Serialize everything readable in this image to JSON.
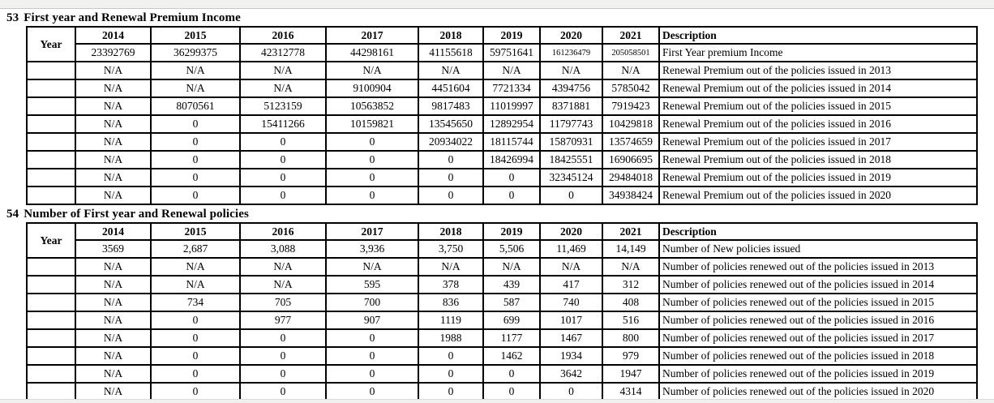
{
  "sections": [
    {
      "number": "53",
      "title": "First year and Renewal Premium Income",
      "table": {
        "year_header": "Year",
        "col_headers": [
          "2014",
          "2015",
          "2016",
          "2017",
          "2018",
          "2019",
          "2020",
          "2021"
        ],
        "description_header": "Description",
        "rows": [
          {
            "cells": [
              "23392769",
              "36299375",
              "42312778",
              "44298161",
              "41155618",
              "59751641",
              "161236479",
              "205058501"
            ],
            "small_cells": [
              6,
              7
            ],
            "description": "First Year premium Income"
          },
          {
            "cells": [
              "N/A",
              "N/A",
              "N/A",
              "N/A",
              "N/A",
              "N/A",
              "N/A",
              "N/A"
            ],
            "description": "Renewal Premium out of the policies issued in 2013"
          },
          {
            "cells": [
              "N/A",
              "N/A",
              "N/A",
              "9100904",
              "4451604",
              "7721334",
              "4394756",
              "5785042"
            ],
            "description": "Renewal Premium out of the policies issued in 2014"
          },
          {
            "cells": [
              "N/A",
              "8070561",
              "5123159",
              "10563852",
              "9817483",
              "11019997",
              "8371881",
              "7919423"
            ],
            "description": "Renewal Premium out of the policies issued in 2015"
          },
          {
            "cells": [
              "N/A",
              "0",
              "15411266",
              "10159821",
              "13545650",
              "12892954",
              "11797743",
              "10429818"
            ],
            "description": "Renewal Premium out of the policies issued in 2016"
          },
          {
            "cells": [
              "N/A",
              "0",
              "0",
              "0",
              "20934022",
              "18115744",
              "15870931",
              "13574659"
            ],
            "description": "Renewal Premium out of the policies issued in 2017"
          },
          {
            "cells": [
              "N/A",
              "0",
              "0",
              "0",
              "0",
              "18426994",
              "18425551",
              "16906695"
            ],
            "description": "Renewal Premium out of the policies issued in 2018"
          },
          {
            "cells": [
              "N/A",
              "0",
              "0",
              "0",
              "0",
              "0",
              "32345124",
              "29484018"
            ],
            "description": "Renewal Premium out of the policies issued in 2019"
          },
          {
            "cells": [
              "N/A",
              "0",
              "0",
              "0",
              "0",
              "0",
              "0",
              "34938424"
            ],
            "description": "Renewal Premium out of the policies issued in 2020"
          }
        ]
      }
    },
    {
      "number": "54",
      "title": "Number of First year and Renewal policies",
      "table": {
        "year_header": "Year",
        "col_headers": [
          "2014",
          "2015",
          "2016",
          "2017",
          "2018",
          "2019",
          "2020",
          "2021"
        ],
        "description_header": "Description",
        "rows": [
          {
            "cells": [
              "3569",
              "2,687",
              "3,088",
              "3,936",
              "3,750",
              "5,506",
              "11,469",
              "14,149"
            ],
            "description": "Number of New policies issued"
          },
          {
            "cells": [
              "N/A",
              "N/A",
              "N/A",
              "N/A",
              "N/A",
              "N/A",
              "N/A",
              "N/A"
            ],
            "description": "Number of policies renewed out of the policies issued in 2013"
          },
          {
            "cells": [
              "N/A",
              "N/A",
              "N/A",
              "595",
              "378",
              "439",
              "417",
              "312"
            ],
            "description": "Number of policies renewed out of the policies issued in 2014"
          },
          {
            "cells": [
              "N/A",
              "734",
              "705",
              "700",
              "836",
              "587",
              "740",
              "408"
            ],
            "description": "Number of policies renewed out of the policies issued in 2015"
          },
          {
            "cells": [
              "N/A",
              "0",
              "977",
              "907",
              "1119",
              "699",
              "1017",
              "516"
            ],
            "description": "Number of policies renewed out of the policies issued in 2016"
          },
          {
            "cells": [
              "N/A",
              "0",
              "0",
              "0",
              "1988",
              "1177",
              "1467",
              "800"
            ],
            "description": "Number of policies renewed out of the policies issued in 2017"
          },
          {
            "cells": [
              "N/A",
              "0",
              "0",
              "0",
              "0",
              "1462",
              "1934",
              "979"
            ],
            "description": "Number of policies renewed out of the policies issued in 2018"
          },
          {
            "cells": [
              "N/A",
              "0",
              "0",
              "0",
              "0",
              "0",
              "3642",
              "1947"
            ],
            "description": "Number of policies renewed out of the policies issued in 2019"
          },
          {
            "cells": [
              "N/A",
              "0",
              "0",
              "0",
              "0",
              "0",
              "0",
              "4314"
            ],
            "description": "Number of policies renewed out of the policies issued in 2020"
          }
        ]
      }
    }
  ]
}
